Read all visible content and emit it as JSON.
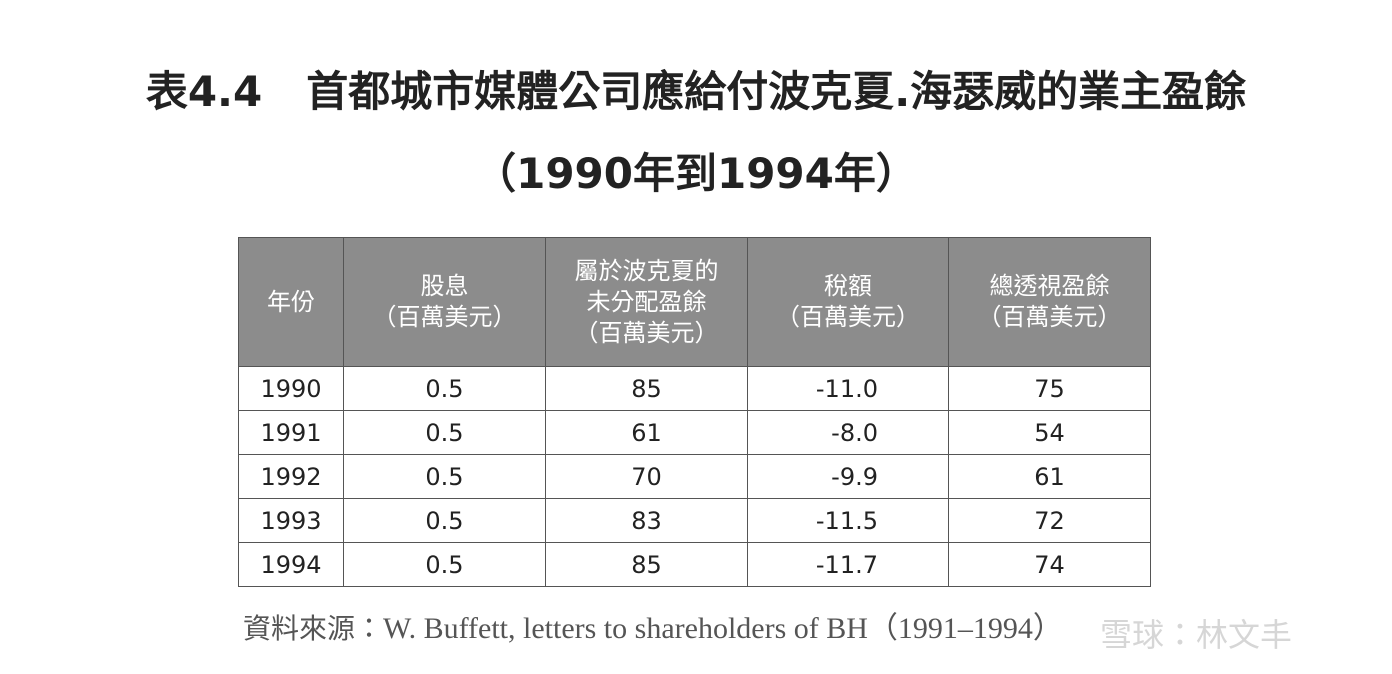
{
  "title": {
    "label": "表4.4",
    "text": "首都城市媒體公司應給付波克夏.海瑟威的業主盈餘",
    "subtitle": "（1990年到1994年）"
  },
  "table": {
    "header": [
      [
        "年份"
      ],
      [
        "股息",
        "（百萬美元）"
      ],
      [
        "屬於波克夏的",
        "未分配盈餘",
        "（百萬美元）"
      ],
      [
        "稅額",
        "（百萬美元）"
      ],
      [
        "總透視盈餘",
        "（百萬美元）"
      ]
    ],
    "rows": [
      [
        "1990",
        "0.5",
        "85",
        "-11.0",
        "75"
      ],
      [
        "1991",
        "0.5",
        "61",
        "-8.0",
        "54"
      ],
      [
        "1992",
        "0.5",
        "70",
        "-9.9",
        "61"
      ],
      [
        "1993",
        "0.5",
        "83",
        "-11.5",
        "72"
      ],
      [
        "1994",
        "0.5",
        "85",
        "-11.7",
        "74"
      ]
    ]
  },
  "source": {
    "label": "資料來源：",
    "text": "W. Buffett, letters to shareholders of BH（1991–1994）"
  },
  "watermark": "雪球：林文丰"
}
